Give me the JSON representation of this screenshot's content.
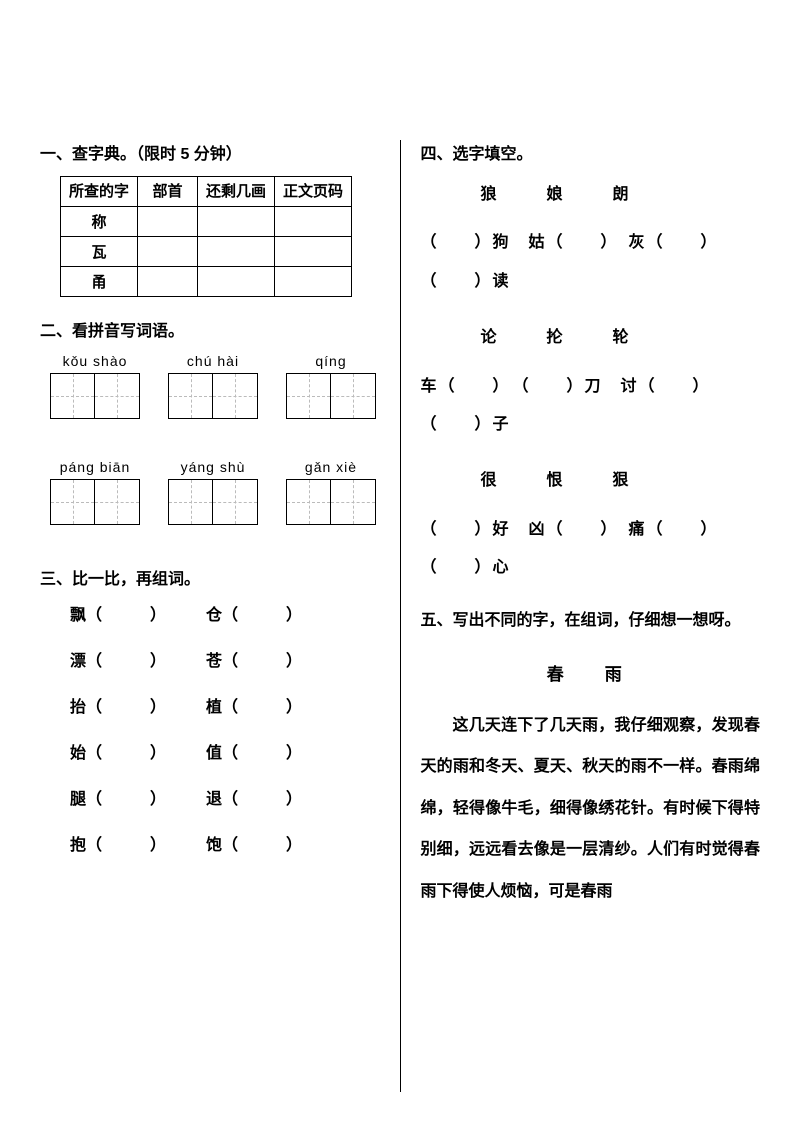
{
  "section1": {
    "title": "一、查字典。（限时 5 分钟）",
    "headers": [
      "所查的字",
      "部首",
      "还剩几画",
      "正文页码"
    ],
    "rows": [
      "称",
      "瓦",
      "甬"
    ]
  },
  "section2": {
    "title": "二、看拼音写词语。",
    "row1": [
      {
        "pinyin": "kǒu  shào"
      },
      {
        "pinyin": "chú  hài"
      },
      {
        "pinyin": "qíng"
      }
    ],
    "row2": [
      {
        "pinyin": "páng  biān"
      },
      {
        "pinyin": "yáng  shù"
      },
      {
        "pinyin": "gǎn  xiè"
      }
    ]
  },
  "section3": {
    "title": "三、比一比，再组词。",
    "pairs": [
      [
        "飘（　　　）",
        "仓（　　　）"
      ],
      [
        "漂（　　　）",
        "苍（　　　）"
      ],
      [
        "抬（　　　）",
        "植（　　　）"
      ],
      [
        "始（　　　）",
        "值（　　　）"
      ],
      [
        "腿（　　　）",
        "退（　　　）"
      ],
      [
        "抱（　　　）",
        "饱（　　　）"
      ]
    ]
  },
  "section4": {
    "title": "四、选字填空。",
    "groups": [
      {
        "chars": [
          "狼",
          "娘",
          "朗"
        ],
        "lines": [
          "（　　）狗　姑（　　）　灰（　　）",
          "（　　）读"
        ]
      },
      {
        "chars": [
          "论",
          "抡",
          "轮"
        ],
        "lines": [
          "车（　　）　（　　）刀　讨（　　）",
          "（　　）子"
        ]
      },
      {
        "chars": [
          "很",
          "恨",
          "狠"
        ],
        "lines": [
          "（　　）好　凶（　　）　痛（　　）",
          "（　　）心"
        ]
      }
    ]
  },
  "section5": {
    "title": "五、写出不同的字，在组词，仔细想一想呀。",
    "passage_title": "春　雨",
    "passage": "这几天连下了几天雨，我仔细观察，发现春天的雨和冬天、夏天、秋天的雨不一样。春雨绵绵，轻得像牛毛，细得像绣花针。有时候下得特别细，远远看去像是一层清纱。人们有时觉得春雨下得使人烦恼，可是春雨"
  }
}
